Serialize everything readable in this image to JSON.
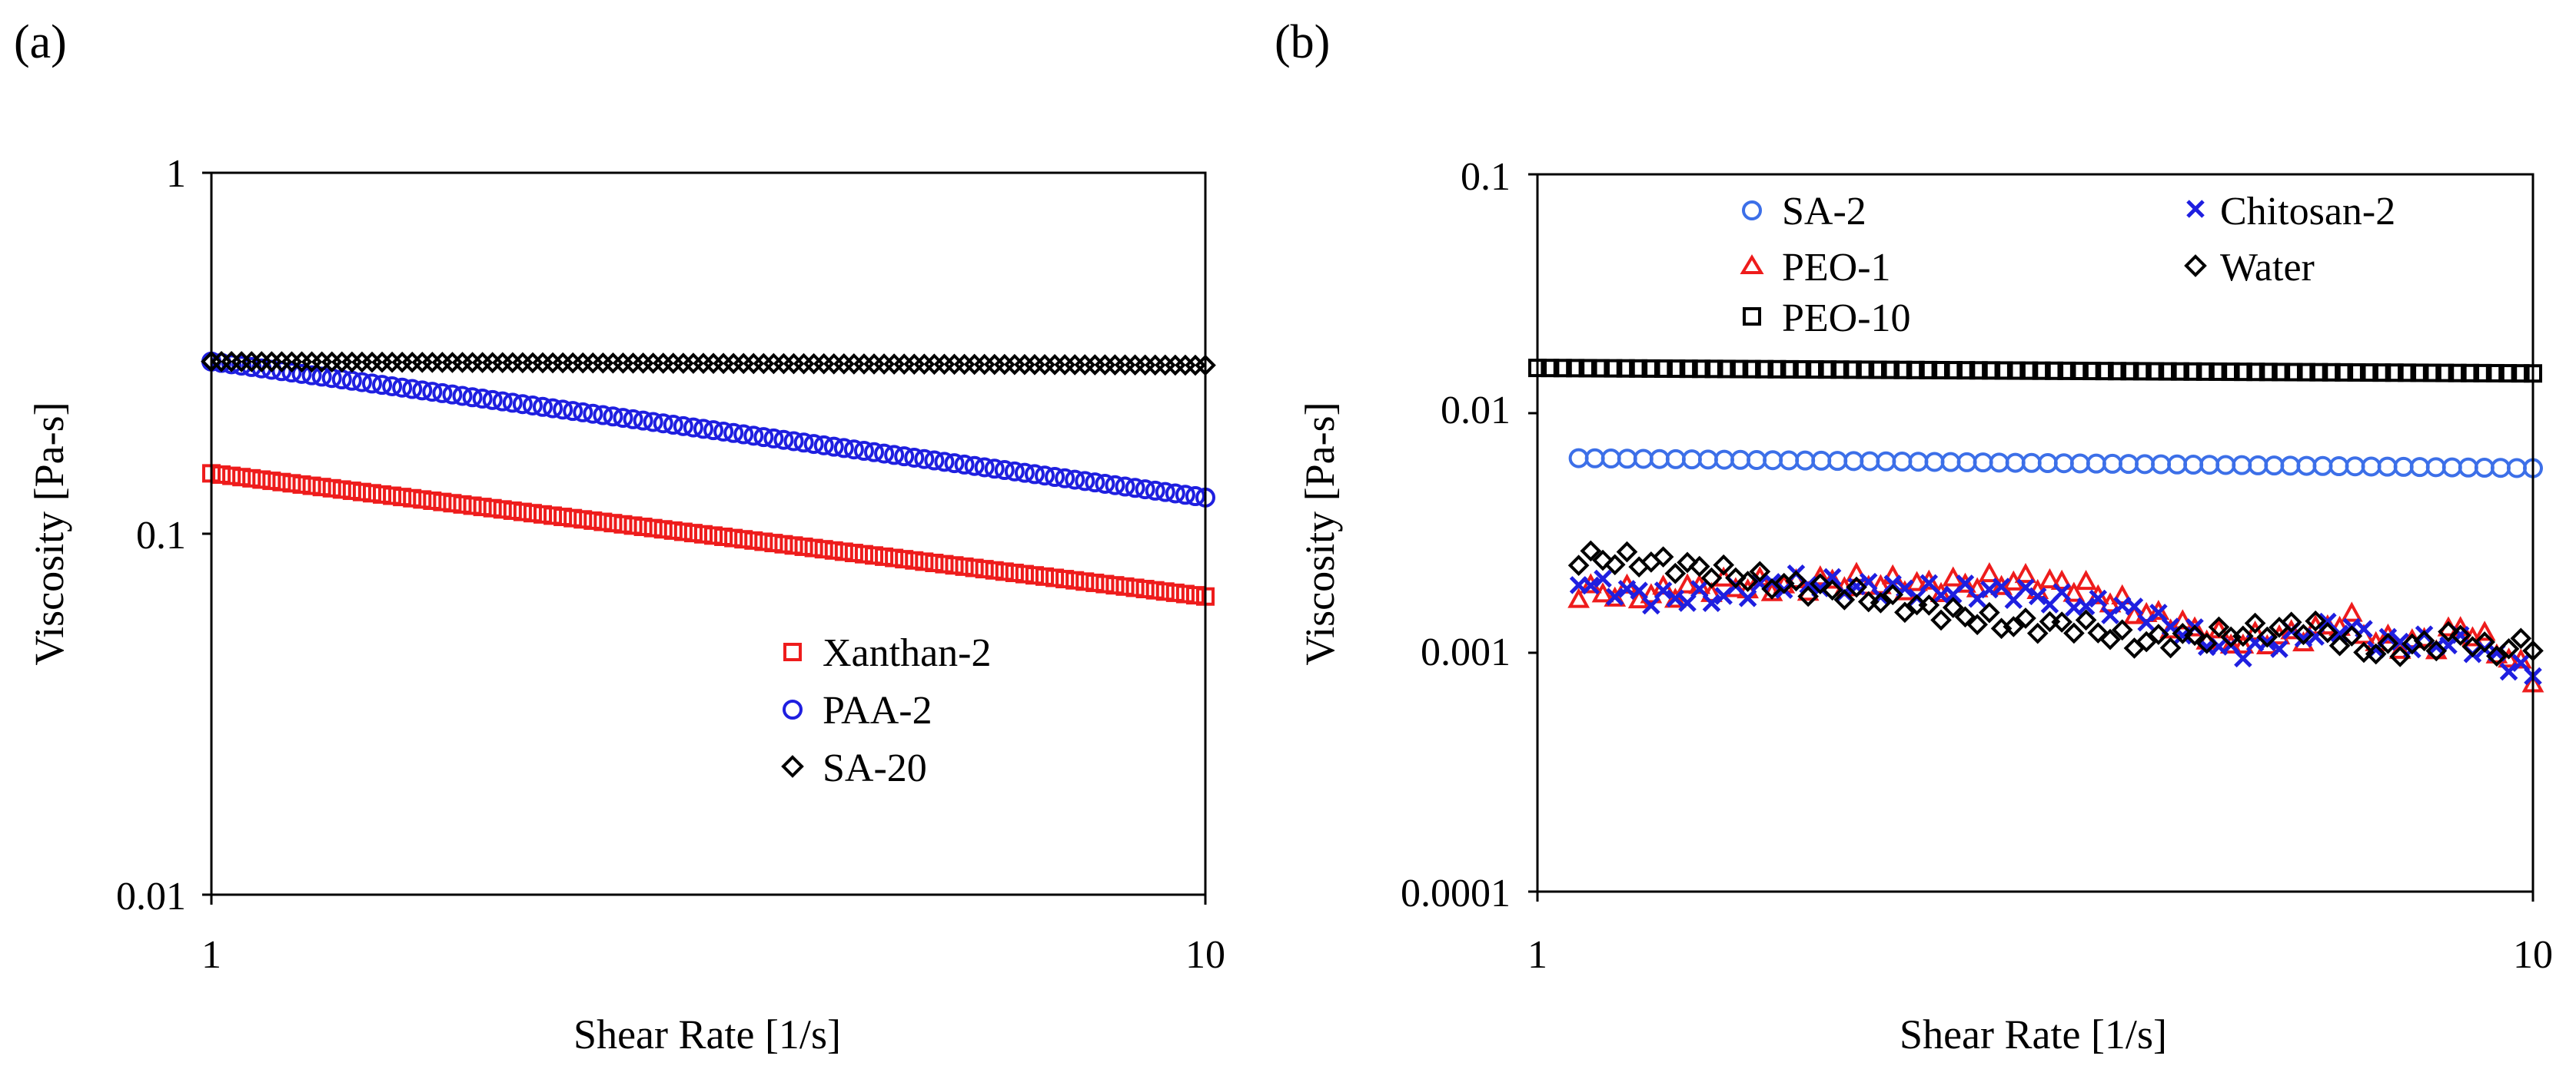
{
  "chart_data": [
    {
      "panel_label": "(a)",
      "type": "scatter",
      "xlabel": "Shear Rate [1/s]",
      "ylabel": "Viscosity [Pa-s]",
      "xscale": "log",
      "yscale": "log",
      "xlim": [
        1,
        10
      ],
      "ylim": [
        0.01,
        1
      ],
      "xticks": [
        1,
        10
      ],
      "xtick_labels": [
        "1",
        "10"
      ],
      "yticks": [
        0.01,
        0.1,
        1
      ],
      "ytick_labels": [
        "0.01",
        "0.1",
        "1"
      ],
      "grid": false,
      "legend_position": "bottom-right",
      "series": [
        {
          "name": "Xanthan-2",
          "marker": "square",
          "color": "#ee1c1c",
          "x_range": [
            1,
            10
          ],
          "points": 100,
          "y_start": 0.147,
          "y_end": 0.067,
          "curve": "power-law"
        },
        {
          "name": "PAA-2",
          "marker": "circle",
          "color": "#1f1fe0",
          "x_range": [
            1,
            10
          ],
          "points": 100,
          "y_start": 0.3,
          "y_end": 0.126,
          "curve": "power-law"
        },
        {
          "name": "SA-20",
          "marker": "diamond",
          "color": "#000000",
          "x_range": [
            1,
            10
          ],
          "points": 100,
          "y_start": 0.3,
          "y_end": 0.293,
          "curve": "flat"
        }
      ]
    },
    {
      "panel_label": "(b)",
      "type": "scatter",
      "xlabel": "Shear Rate [1/s]",
      "ylabel": "Viscosity [Pa-s]",
      "xscale": "log",
      "yscale": "log",
      "xlim": [
        1,
        10
      ],
      "ylim": [
        0.0001,
        0.1
      ],
      "xticks": [
        1,
        10
      ],
      "xtick_labels": [
        "1",
        "10"
      ],
      "yticks": [
        0.0001,
        0.001,
        0.01,
        0.1
      ],
      "ytick_labels": [
        "0.0001",
        "0.001",
        "0.01",
        "0.1"
      ],
      "grid": false,
      "legend_position": "top",
      "series": [
        {
          "name": "SA-2",
          "marker": "circle",
          "color": "#3c6fe8",
          "x_range": [
            1.1,
            10
          ],
          "points": 60,
          "y_start": 0.0065,
          "y_end": 0.0059,
          "curve": "flat"
        },
        {
          "name": "PEO-1",
          "marker": "triangle",
          "color": "#ee1c1c",
          "x_range": [
            1.1,
            10
          ],
          "points": 80,
          "curve": "noisy",
          "x": [
            1.1,
            1.3,
            1.5,
            1.8,
            2.0,
            2.5,
            3.0,
            3.5,
            4.0,
            5.0,
            6.0,
            6.5,
            7.0,
            8.0,
            8.5,
            9.0,
            10.0
          ],
          "y": [
            0.0018,
            0.00175,
            0.0019,
            0.0019,
            0.002,
            0.0019,
            0.002,
            0.0019,
            0.0015,
            0.0011,
            0.0012,
            0.0014,
            0.0011,
            0.0011,
            0.0013,
            0.0011,
            0.0008
          ]
        },
        {
          "name": "PEO-10",
          "marker": "square",
          "color": "#000000",
          "x_range": [
            1,
            10
          ],
          "points": 80,
          "y_start": 0.0155,
          "y_end": 0.0147,
          "curve": "flat"
        },
        {
          "name": "Chitosan-2",
          "marker": "x",
          "color": "#1f1fe0",
          "x_range": [
            1.1,
            10
          ],
          "points": 80,
          "curve": "noisy",
          "x": [
            1.1,
            1.3,
            1.5,
            1.8,
            2.0,
            2.5,
            3.0,
            3.5,
            4.0,
            5.0,
            6.0,
            6.5,
            7.0,
            8.0,
            8.5,
            9.0,
            10.0
          ],
          "y": [
            0.002,
            0.0017,
            0.0017,
            0.002,
            0.0019,
            0.0018,
            0.0018,
            0.0016,
            0.0015,
            0.001,
            0.0012,
            0.0013,
            0.0011,
            0.0011,
            0.0011,
            0.001,
            0.0008
          ]
        },
        {
          "name": "Water",
          "marker": "diamond",
          "color": "#000000",
          "x_range": [
            1.1,
            10
          ],
          "points": 80,
          "curve": "noisy",
          "x": [
            1.1,
            1.3,
            1.5,
            1.8,
            2.0,
            2.5,
            3.0,
            3.5,
            4.0,
            5.0,
            6.0,
            6.5,
            7.0,
            8.0,
            8.5,
            9.0,
            10.0
          ],
          "y": [
            0.0025,
            0.0024,
            0.0022,
            0.0019,
            0.0018,
            0.0015,
            0.0013,
            0.0013,
            0.0011,
            0.0012,
            0.0013,
            0.0011,
            0.001,
            0.0011,
            0.0012,
            0.001,
            0.0011
          ]
        }
      ]
    }
  ]
}
